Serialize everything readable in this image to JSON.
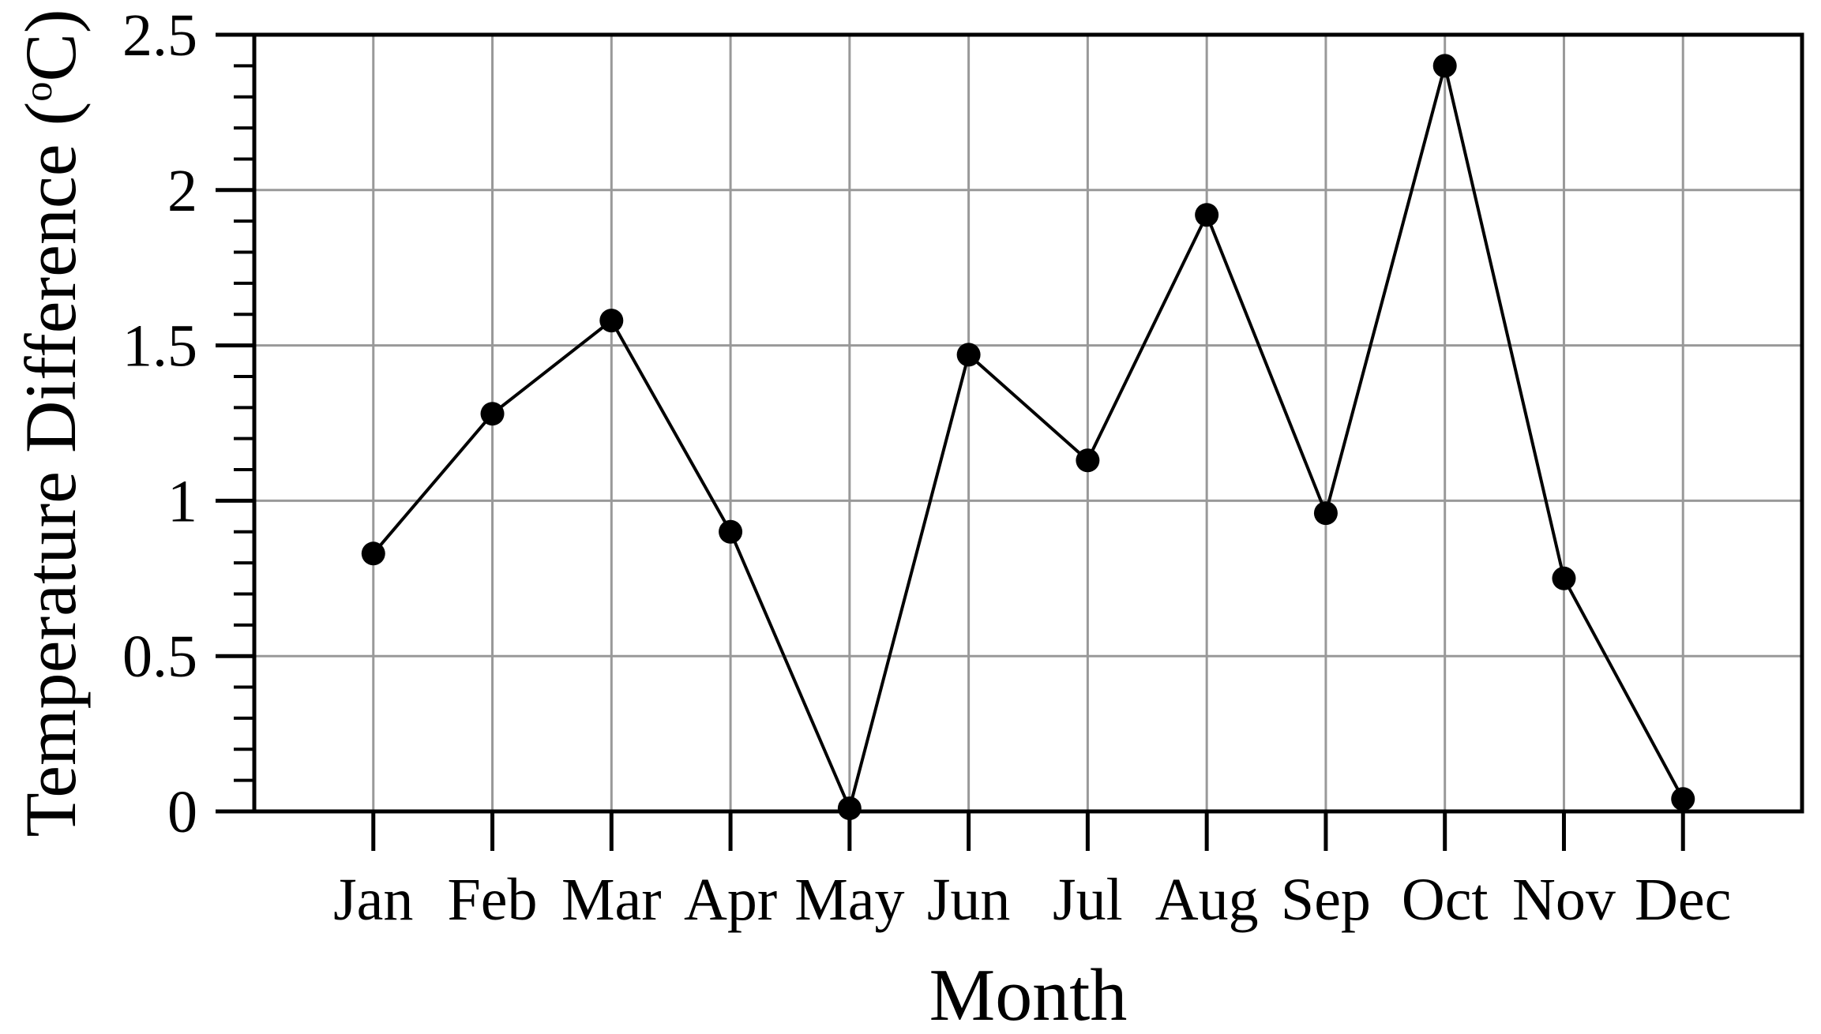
{
  "figure": {
    "background_color": "#ffffff",
    "axis_color": "#000000",
    "grid_color": "#999999",
    "line_color": "#000000",
    "marker_color": "#000000"
  },
  "chart_data": {
    "type": "line",
    "title": "",
    "xlabel": "Month",
    "ylabel": "Temperature Difference (°C)",
    "ylabel_parts": {
      "prefix": "Temperature Difference (",
      "degree_superscript": "o",
      "suffix": "C)"
    },
    "categories": [
      "Jan",
      "Feb",
      "Mar",
      "Apr",
      "May",
      "Jun",
      "Jul",
      "Aug",
      "Sep",
      "Oct",
      "Nov",
      "Dec"
    ],
    "series": [
      {
        "name": "Temperature Difference",
        "values": [
          0.83,
          1.28,
          1.58,
          0.9,
          0.01,
          1.47,
          1.13,
          1.92,
          0.96,
          2.4,
          0.75,
          0.04
        ]
      }
    ],
    "ylim": [
      0,
      2.5
    ],
    "yticks": [
      0,
      0.5,
      1,
      1.5,
      2,
      2.5
    ],
    "ytick_labels": [
      "0",
      "0.5",
      "1",
      "1.5",
      "2",
      "2.5"
    ],
    "minor_ytick_step": 0.1,
    "grid": true,
    "legend": false,
    "marker": "filled-circle",
    "line_style": "solid"
  }
}
